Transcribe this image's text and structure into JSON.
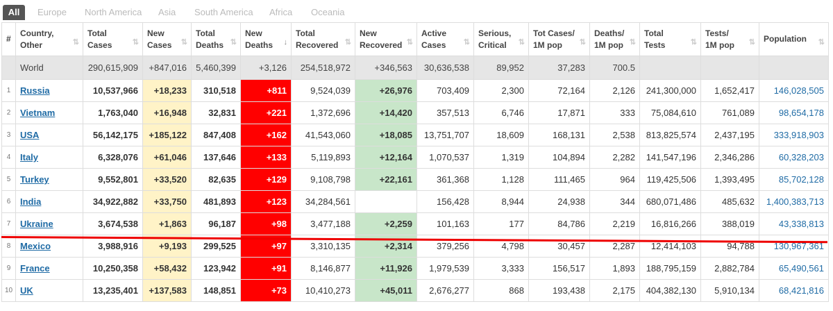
{
  "tabs": [
    "All",
    "Europe",
    "North America",
    "Asia",
    "South America",
    "Africa",
    "Oceania"
  ],
  "headers": {
    "idx": "#",
    "country": [
      "Country,",
      "Other"
    ],
    "total_cases": [
      "Total",
      "Cases"
    ],
    "new_cases": [
      "New",
      "Cases"
    ],
    "total_deaths": [
      "Total",
      "Deaths"
    ],
    "new_deaths": [
      "New",
      "Deaths"
    ],
    "total_recovered": [
      "Total",
      "Recovered"
    ],
    "new_recovered": [
      "New",
      "Recovered"
    ],
    "active_cases": [
      "Active",
      "Cases"
    ],
    "serious": [
      "Serious,",
      "Critical"
    ],
    "tot_cases_1m": [
      "Tot Cases/",
      "1M pop"
    ],
    "deaths_1m": [
      "Deaths/",
      "1M pop"
    ],
    "total_tests": [
      "Total",
      "Tests"
    ],
    "tests_1m": [
      "Tests/",
      "1M pop"
    ],
    "population": "Population"
  },
  "world": [
    "World",
    "290,615,909",
    "+847,016",
    "5,460,399",
    "+3,126",
    "254,518,972",
    "+346,563",
    "30,636,538",
    "89,952",
    "37,283",
    "700.5",
    "",
    "",
    ""
  ],
  "rows": [
    [
      "1",
      "Russia",
      "10,537,966",
      "+18,233",
      "310,518",
      "+811",
      "9,524,039",
      "+26,976",
      "703,409",
      "2,300",
      "72,164",
      "2,126",
      "241,300,000",
      "1,652,417",
      "146,028,505"
    ],
    [
      "2",
      "Vietnam",
      "1,763,040",
      "+16,948",
      "32,831",
      "+221",
      "1,372,696",
      "+14,420",
      "357,513",
      "6,746",
      "17,871",
      "333",
      "75,084,610",
      "761,089",
      "98,654,178"
    ],
    [
      "3",
      "USA",
      "56,142,175",
      "+185,122",
      "847,408",
      "+162",
      "41,543,060",
      "+18,085",
      "13,751,707",
      "18,609",
      "168,131",
      "2,538",
      "813,825,574",
      "2,437,195",
      "333,918,903"
    ],
    [
      "4",
      "Italy",
      "6,328,076",
      "+61,046",
      "137,646",
      "+133",
      "5,119,893",
      "+12,164",
      "1,070,537",
      "1,319",
      "104,894",
      "2,282",
      "141,547,196",
      "2,346,286",
      "60,328,203"
    ],
    [
      "5",
      "Turkey",
      "9,552,801",
      "+33,520",
      "82,635",
      "+129",
      "9,108,798",
      "+22,161",
      "361,368",
      "1,128",
      "111,465",
      "964",
      "119,425,506",
      "1,393,495",
      "85,702,128"
    ],
    [
      "6",
      "India",
      "34,922,882",
      "+33,750",
      "481,893",
      "+123",
      "34,284,561",
      "",
      "156,428",
      "8,944",
      "24,938",
      "344",
      "680,071,486",
      "485,632",
      "1,400,383,713"
    ],
    [
      "7",
      "Ukraine",
      "3,674,538",
      "+1,863",
      "96,187",
      "+98",
      "3,477,188",
      "+2,259",
      "101,163",
      "177",
      "84,786",
      "2,219",
      "16,816,266",
      "388,019",
      "43,338,813"
    ],
    [
      "8",
      "Mexico",
      "3,988,916",
      "+9,193",
      "299,525",
      "+97",
      "3,310,135",
      "+2,314",
      "379,256",
      "4,798",
      "30,457",
      "2,287",
      "12,414,103",
      "94,788",
      "130,967,361"
    ],
    [
      "9",
      "France",
      "10,250,358",
      "+58,432",
      "123,942",
      "+91",
      "8,146,877",
      "+11,926",
      "1,979,539",
      "3,333",
      "156,517",
      "1,893",
      "188,795,159",
      "2,882,784",
      "65,490,561"
    ],
    [
      "10",
      "UK",
      "13,235,401",
      "+137,583",
      "148,851",
      "+73",
      "10,410,273",
      "+45,011",
      "2,676,277",
      "868",
      "193,438",
      "2,175",
      "404,382,130",
      "5,910,134",
      "68,421,816"
    ]
  ],
  "colors": {
    "new_cases_bg": "#fff3c7",
    "new_deaths_bg": "#ff0000",
    "new_recovered_bg": "#c8e6c9",
    "link": "#1f6ba5",
    "highlight_line": "#e00000"
  }
}
